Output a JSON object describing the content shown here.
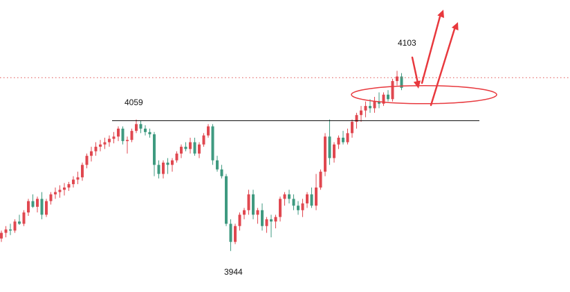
{
  "chart_data": {
    "type": "candlestick",
    "grid": false,
    "legend": "none",
    "ylim": [
      3920,
      4135
    ],
    "colors": {
      "up": "#e04850",
      "down": "#3f9a80",
      "annotation": "#e8383d",
      "reference_line": "#000000",
      "dotted_line": "#e05050"
    },
    "annotations": {
      "high_label": "4103",
      "resistance_label": "4059",
      "low_label": "3944",
      "resistance_level": 4059,
      "dotted_level": 4097,
      "ellipse_level": 4082
    },
    "candles": [
      [
        3955,
        3962,
        3952,
        3960
      ],
      [
        3960,
        3966,
        3956,
        3963
      ],
      [
        3963,
        3968,
        3958,
        3962
      ],
      [
        3962,
        3972,
        3960,
        3970
      ],
      [
        3970,
        3976,
        3967,
        3968
      ],
      [
        3968,
        3980,
        3966,
        3978
      ],
      [
        3978,
        3990,
        3975,
        3988
      ],
      [
        3988,
        3994,
        3982,
        3983
      ],
      [
        3983,
        3992,
        3978,
        3990
      ],
      [
        3990,
        3996,
        3972,
        3976
      ],
      [
        3976,
        3990,
        3974,
        3988
      ],
      [
        3988,
        3996,
        3985,
        3994
      ],
      [
        3994,
        4000,
        3990,
        3996
      ],
      [
        3996,
        4002,
        3991,
        3998
      ],
      [
        3998,
        4004,
        3993,
        4000
      ],
      [
        4000,
        4005,
        3997,
        4003
      ],
      [
        4003,
        4010,
        4000,
        4007
      ],
      [
        4007,
        4014,
        4003,
        4009
      ],
      [
        4009,
        4022,
        4006,
        4020
      ],
      [
        4020,
        4030,
        4017,
        4028
      ],
      [
        4028,
        4036,
        4023,
        4032
      ],
      [
        4032,
        4040,
        4028,
        4036
      ],
      [
        4036,
        4042,
        4032,
        4038
      ],
      [
        4038,
        4044,
        4034,
        4040
      ],
      [
        4040,
        4046,
        4036,
        4043
      ],
      [
        4043,
        4049,
        4039,
        4045
      ],
      [
        4045,
        4054,
        4041,
        4052
      ],
      [
        4052,
        4054,
        4038,
        4041
      ],
      [
        4041,
        4045,
        4030,
        4042
      ],
      [
        4042,
        4052,
        4040,
        4050
      ],
      [
        4050,
        4060,
        4048,
        4056
      ],
      [
        4056,
        4059,
        4048,
        4052
      ],
      [
        4052,
        4055,
        4046,
        4049
      ],
      [
        4049,
        4052,
        4044,
        4047
      ],
      [
        4047,
        4049,
        4010,
        4020
      ],
      [
        4020,
        4024,
        4008,
        4012
      ],
      [
        4012,
        4024,
        4008,
        4022
      ],
      [
        4022,
        4026,
        4012,
        4020
      ],
      [
        4020,
        4026,
        4014,
        4024
      ],
      [
        4024,
        4032,
        4022,
        4030
      ],
      [
        4030,
        4038,
        4026,
        4036
      ],
      [
        4036,
        4040,
        4032,
        4034
      ],
      [
        4034,
        4044,
        4030,
        4040
      ],
      [
        4040,
        4044,
        4028,
        4030
      ],
      [
        4030,
        4040,
        4026,
        4038
      ],
      [
        4038,
        4048,
        4036,
        4046
      ],
      [
        4046,
        4056,
        4044,
        4054
      ],
      [
        4054,
        4056,
        4020,
        4024
      ],
      [
        4024,
        4028,
        4014,
        4016
      ],
      [
        4016,
        4020,
        4008,
        4010
      ],
      [
        4010,
        4012,
        3966,
        3968
      ],
      [
        3968,
        3972,
        3944,
        3952
      ],
      [
        3952,
        3968,
        3950,
        3966
      ],
      [
        3966,
        3978,
        3962,
        3976
      ],
      [
        3976,
        3982,
        3972,
        3980
      ],
      [
        3980,
        3998,
        3976,
        3994
      ],
      [
        3994,
        3998,
        3972,
        3976
      ],
      [
        3976,
        3982,
        3968,
        3980
      ],
      [
        3980,
        3986,
        3962,
        3966
      ],
      [
        3966,
        3974,
        3960,
        3972
      ],
      [
        3972,
        3976,
        3956,
        3970
      ],
      [
        3970,
        3976,
        3964,
        3974
      ],
      [
        3974,
        3992,
        3970,
        3990
      ],
      [
        3990,
        3996,
        3984,
        3994
      ],
      [
        3994,
        3998,
        3986,
        3990
      ],
      [
        3990,
        3994,
        3980,
        3984
      ],
      [
        3984,
        3988,
        3976,
        3980
      ],
      [
        3980,
        3990,
        3974,
        3986
      ],
      [
        3986,
        3996,
        3982,
        3994
      ],
      [
        3994,
        4000,
        3982,
        3984
      ],
      [
        3984,
        4012,
        3980,
        4000
      ],
      [
        4000,
        4016,
        3998,
        4014
      ],
      [
        4014,
        4048,
        4010,
        4045
      ],
      [
        4045,
        4060,
        4020,
        4026
      ],
      [
        4026,
        4040,
        4022,
        4038
      ],
      [
        4038,
        4046,
        4034,
        4044
      ],
      [
        4044,
        4050,
        4038,
        4040
      ],
      [
        4040,
        4052,
        4038,
        4048
      ],
      [
        4048,
        4060,
        4044,
        4058
      ],
      [
        4058,
        4066,
        4052,
        4064
      ],
      [
        4064,
        4072,
        4058,
        4068
      ],
      [
        4068,
        4076,
        4062,
        4072
      ],
      [
        4072,
        4078,
        4066,
        4070
      ],
      [
        4070,
        4080,
        4066,
        4076
      ],
      [
        4076,
        4084,
        4070,
        4074
      ],
      [
        4074,
        4084,
        4072,
        4082
      ],
      [
        4082,
        4086,
        4076,
        4078
      ],
      [
        4078,
        4096,
        4076,
        4094
      ],
      [
        4094,
        4103,
        4090,
        4098
      ],
      [
        4098,
        4101,
        4086,
        4088
      ]
    ]
  }
}
